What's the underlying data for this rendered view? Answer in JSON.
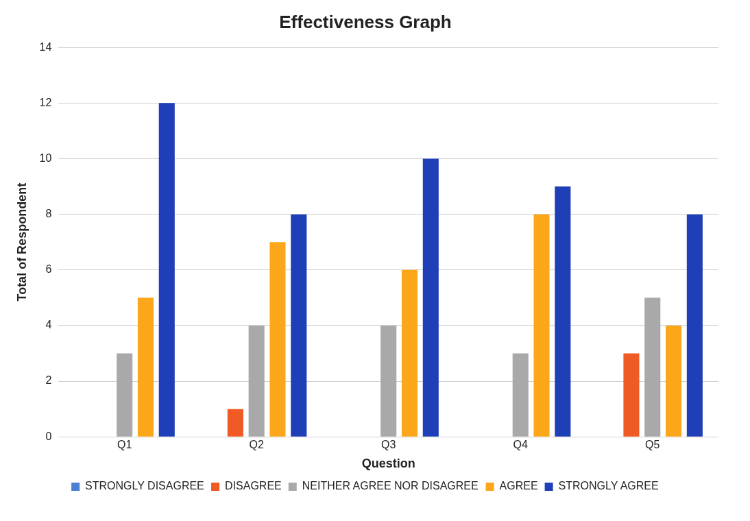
{
  "chart_data": {
    "type": "bar",
    "title": "Effectiveness Graph",
    "xlabel": "Question",
    "ylabel": "Total of Respondent",
    "categories": [
      "Q1",
      "Q2",
      "Q3",
      "Q4",
      "Q5"
    ],
    "series": [
      {
        "name": "STRONGLY DISAGREE",
        "color": "#4a7fd4",
        "values": [
          0,
          0,
          0,
          0,
          0
        ]
      },
      {
        "name": "DISAGREE",
        "color": "#f05a24",
        "values": [
          0,
          1,
          0,
          0,
          3
        ]
      },
      {
        "name": "NEITHER AGREE NOR DISAGREE",
        "color": "#a9a9a9",
        "values": [
          3,
          4,
          4,
          3,
          5
        ]
      },
      {
        "name": "AGREE",
        "color": "#fca61a",
        "values": [
          5,
          7,
          6,
          8,
          4
        ]
      },
      {
        "name": "STRONGLY AGREE",
        "color": "#1f3fb8",
        "values": [
          12,
          8,
          10,
          9,
          8
        ]
      }
    ],
    "ylim": [
      0,
      14
    ],
    "yticks": [
      0,
      2,
      4,
      6,
      8,
      10,
      12,
      14
    ],
    "grid": "y",
    "legend": "bottom"
  }
}
